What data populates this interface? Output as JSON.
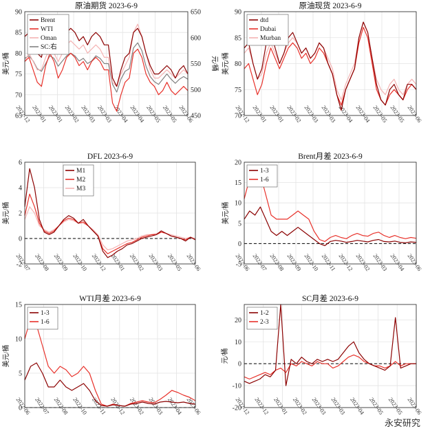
{
  "watermark": "永安研究",
  "colors": {
    "dark": "#8b0000",
    "red": "#e8312a",
    "pink": "#f4b3b3",
    "gray": "#808080"
  },
  "chart_data": [
    {
      "type": "line",
      "title": "原油期货 2023-6-9",
      "ylabel": "美元/桶",
      "y2label": "元/桶",
      "ylim": [
        65,
        90
      ],
      "yticks": [
        65,
        70,
        75,
        80,
        85,
        90
      ],
      "y2lim": [
        450,
        650
      ],
      "y2ticks": [
        450,
        500,
        550,
        600,
        650
      ],
      "x_ticks": [
        "2022-12",
        "2023-01",
        "2023-01",
        "2023-02",
        "2023-03",
        "2023-03",
        "2023-04",
        "2023-04",
        "2023-05",
        "2023-05",
        "2023-06"
      ],
      "legend": "top-left",
      "series": [
        {
          "name": "Brent",
          "color": "#8b0000",
          "values": [
            84,
            85,
            82,
            80,
            79,
            84,
            86,
            83,
            80,
            82,
            85,
            86,
            85,
            83,
            84,
            82,
            84,
            85,
            84,
            82,
            82,
            74,
            72,
            76,
            79,
            80,
            85,
            86,
            84,
            80,
            77,
            75,
            75,
            76,
            77,
            76,
            74,
            76,
            77,
            75
          ]
        },
        {
          "name": "WTI",
          "color": "#e8312a",
          "values": [
            78,
            79,
            76,
            73,
            72,
            77,
            80,
            78,
            74,
            76,
            79,
            80,
            79,
            77,
            78,
            76,
            78,
            79,
            78,
            76,
            76,
            68,
            66,
            70,
            73,
            74,
            80,
            81,
            79,
            75,
            73,
            72,
            70,
            71,
            73,
            71,
            70,
            71,
            72,
            71
          ]
        },
        {
          "name": "Oman",
          "color": "#f4b3b3",
          "values": [
            78,
            80,
            78,
            76,
            76,
            79,
            81,
            80,
            78,
            80,
            82,
            83,
            82,
            81,
            82,
            80,
            81,
            82,
            81,
            79,
            79,
            73,
            72,
            75,
            77,
            79,
            85,
            87,
            84,
            80,
            76,
            74,
            74,
            75,
            76,
            75,
            74,
            75,
            76,
            75
          ]
        },
        {
          "name": "SC:右",
          "color": "#808080",
          "axis": "right",
          "values": [
            560,
            565,
            555,
            540,
            535,
            550,
            565,
            560,
            545,
            555,
            565,
            570,
            565,
            555,
            560,
            550,
            555,
            565,
            560,
            550,
            550,
            510,
            495,
            520,
            535,
            540,
            580,
            590,
            575,
            545,
            525,
            515,
            510,
            520,
            530,
            520,
            512,
            520,
            525,
            520
          ]
        }
      ]
    },
    {
      "type": "line",
      "title": "原油现货 2023-6-9",
      "ylabel": "美元/桶",
      "ylim": [
        70,
        90
      ],
      "yticks": [
        70,
        75,
        80,
        85,
        90
      ],
      "x_ticks": [
        "2022-12",
        "2023-01",
        "2023-01",
        "2023-02",
        "2023-03",
        "2023-03",
        "2023-04",
        "2023-04",
        "2023-05",
        "2023-05",
        "2023-06"
      ],
      "legend": "top-left",
      "series": [
        {
          "name": "dtd",
          "color": "#8b0000",
          "values": [
            83,
            84,
            80,
            77,
            79,
            84,
            86,
            83,
            80,
            82,
            85,
            86,
            84,
            82,
            83,
            81,
            82,
            84,
            83,
            80,
            78,
            74,
            71,
            75,
            77,
            79,
            85,
            88,
            86,
            81,
            76,
            73,
            72,
            75,
            76,
            74,
            73,
            76,
            76,
            75
          ]
        },
        {
          "name": "Dubai",
          "color": "#e8312a",
          "values": [
            79,
            80,
            77,
            74,
            76,
            80,
            83,
            81,
            79,
            81,
            83,
            84,
            83,
            81,
            82,
            80,
            81,
            83,
            82,
            80,
            78,
            74,
            72,
            75,
            77,
            79,
            84,
            87,
            85,
            80,
            75,
            73,
            72,
            74,
            75,
            74,
            73,
            75,
            76,
            75
          ]
        },
        {
          "name": "Murban",
          "color": "#f4b3b3",
          "values": [
            82,
            83,
            80,
            77,
            78,
            82,
            84,
            82,
            80,
            82,
            84,
            85,
            84,
            82,
            83,
            81,
            82,
            84,
            83,
            81,
            79,
            75,
            73,
            76,
            78,
            80,
            85,
            88,
            86,
            81,
            77,
            75,
            74,
            76,
            77,
            75,
            74,
            76,
            77,
            76
          ]
        }
      ]
    },
    {
      "type": "line",
      "title": "DFL 2023-6-9",
      "ylabel": "美元/桶",
      "ylim": [
        -2,
        6
      ],
      "yticks": [
        -2,
        0,
        2,
        4,
        6
      ],
      "x_ticks": [
        "2022-07",
        "2022-08",
        "2022-09",
        "2022-10",
        "2022-12",
        "2023-01",
        "2023-02",
        "2023-03",
        "2023-05",
        "2023-06"
      ],
      "zero_line": true,
      "legend": "top-center",
      "series": [
        {
          "name": "M1",
          "color": "#8b0000",
          "values": [
            2.5,
            5.5,
            4.0,
            1.5,
            0.5,
            0.3,
            0.5,
            1.0,
            1.5,
            1.8,
            1.6,
            1.2,
            1.5,
            1.0,
            0.6,
            0.2,
            -1.0,
            -1.5,
            -1.3,
            -1.0,
            -0.8,
            -0.5,
            -0.4,
            -0.2,
            0.0,
            0.1,
            0.2,
            0.3,
            0.6,
            0.4,
            0.2,
            0.1,
            0.0,
            -0.2,
            0.1,
            -0.1
          ]
        },
        {
          "name": "M2",
          "color": "#e8312a",
          "values": [
            1.8,
            3.5,
            2.5,
            1.2,
            0.6,
            0.4,
            0.6,
            1.0,
            1.4,
            1.6,
            1.5,
            1.2,
            1.3,
            1.0,
            0.6,
            0.2,
            -0.8,
            -1.2,
            -1.0,
            -0.8,
            -0.6,
            -0.4,
            -0.3,
            -0.1,
            0.1,
            0.2,
            0.3,
            0.3,
            0.5,
            0.4,
            0.2,
            0.1,
            0.0,
            -0.1,
            0.1,
            -0.1
          ]
        },
        {
          "name": "M3",
          "color": "#f4b3b3",
          "values": [
            1.5,
            2.5,
            2.0,
            1.0,
            0.7,
            0.5,
            0.7,
            1.0,
            1.3,
            1.5,
            1.4,
            1.2,
            1.2,
            1.0,
            0.7,
            0.3,
            -0.5,
            -0.9,
            -0.8,
            -0.6,
            -0.4,
            -0.2,
            -0.1,
            0.0,
            0.2,
            0.3,
            0.3,
            0.4,
            0.5,
            0.4,
            0.3,
            0.2,
            0.1,
            0.0,
            0.1,
            0.0
          ]
        }
      ]
    },
    {
      "type": "line",
      "title": "Brent月差 2023-6-9",
      "ylabel": "美元/桶",
      "ylim": [
        -5,
        20
      ],
      "yticks": [
        -5,
        0,
        5,
        10,
        15,
        20
      ],
      "x_ticks": [
        "2022-06",
        "2022-07",
        "2022-08",
        "2022-09",
        "2022-10",
        "2022-11",
        "2022-12",
        "2023-02",
        "2023-03",
        "2023-04",
        "2023-06"
      ],
      "zero_line": true,
      "legend": "top-left",
      "series": [
        {
          "name": "1-3",
          "color": "#8b0000",
          "values": [
            6,
            8,
            7,
            9,
            6,
            3,
            2,
            3,
            2,
            3,
            4,
            3,
            2,
            1,
            0,
            -0.5,
            0.5,
            0.8,
            0.6,
            0.3,
            0.5,
            0.8,
            0.6,
            0.4,
            0.8,
            1.0,
            0.5,
            0.4,
            0.6,
            0.3,
            0.2,
            0.4,
            0.3
          ]
        },
        {
          "name": "1-6",
          "color": "#e8312a",
          "values": [
            11,
            16,
            15,
            17,
            12,
            7,
            6,
            6,
            6,
            7,
            8,
            7,
            6,
            3,
            1,
            0.5,
            1.5,
            2.0,
            1.5,
            1.2,
            2.0,
            2.5,
            2.0,
            1.8,
            2.5,
            2.8,
            2.0,
            1.5,
            2.0,
            1.5,
            1.2,
            1.5,
            1.3
          ]
        }
      ]
    },
    {
      "type": "line",
      "title": "WTI月差 2023-6-9",
      "ylabel": "美元/桶",
      "ylim": [
        0,
        15
      ],
      "yticks": [
        0,
        5,
        10,
        15
      ],
      "x_ticks": [
        "2022-06",
        "2022-07",
        "2022-08",
        "2022-10",
        "2022-11",
        "2022-12",
        "2023-02",
        "2023-03",
        "2023-04",
        "2023-06"
      ],
      "zero_line": true,
      "legend": "top-left",
      "series": [
        {
          "name": "1-3",
          "color": "#8b0000",
          "values": [
            4,
            6,
            6.5,
            5,
            3,
            3,
            4,
            3,
            2.5,
            3,
            3.5,
            2.5,
            1,
            0.3,
            0.2,
            0.4,
            0.3,
            0.2,
            0.5,
            0.6,
            0.8,
            0.6,
            0.5,
            0.8,
            0.9,
            0.8,
            0.7,
            0.8,
            0.6,
            0.5
          ]
        },
        {
          "name": "1-6",
          "color": "#e8312a",
          "values": [
            10,
            13,
            12,
            9,
            6,
            5,
            6,
            5.5,
            4.5,
            5,
            6,
            5,
            2.5,
            0.5,
            0.2,
            0.5,
            0.3,
            0.2,
            0.6,
            0.8,
            1.0,
            0.8,
            0.7,
            1.2,
            1.8,
            2.5,
            2.2,
            1.8,
            1.5,
            1.0
          ]
        }
      ]
    },
    {
      "type": "line",
      "title": "SC月差 2023-6-9",
      "ylabel": "元/桶",
      "ylim": [
        -20,
        27
      ],
      "yticks": [
        -20,
        -10,
        0,
        10,
        20
      ],
      "x_ticks": [
        "2022-12",
        "2022-12",
        "2023-01",
        "2023-02",
        "2023-03",
        "2023-03",
        "2023-04",
        "2023-05",
        "2023-05",
        "2023-06"
      ],
      "zero_line": true,
      "legend": "top-left",
      "series": [
        {
          "name": "1-2",
          "color": "#8b0000",
          "values": [
            -8,
            -9,
            -8,
            -7,
            -5,
            -6,
            -3,
            27,
            -10,
            2,
            0,
            3,
            1,
            0,
            2,
            1,
            2,
            1,
            2,
            5,
            8,
            10,
            5,
            2,
            0,
            -1,
            -2,
            -3,
            -1,
            21,
            -2,
            -1,
            0,
            0
          ]
        },
        {
          "name": "2-3",
          "color": "#e8312a",
          "values": [
            -6,
            -7,
            -6,
            -5,
            -4,
            -5,
            -3,
            -2,
            -4,
            0,
            -1,
            1,
            0,
            -1,
            1,
            0,
            0,
            -2,
            -1,
            1,
            3,
            4,
            3,
            1,
            0,
            -1,
            -1,
            -2,
            -1,
            1,
            -1,
            0,
            0,
            0
          ]
        }
      ]
    }
  ]
}
